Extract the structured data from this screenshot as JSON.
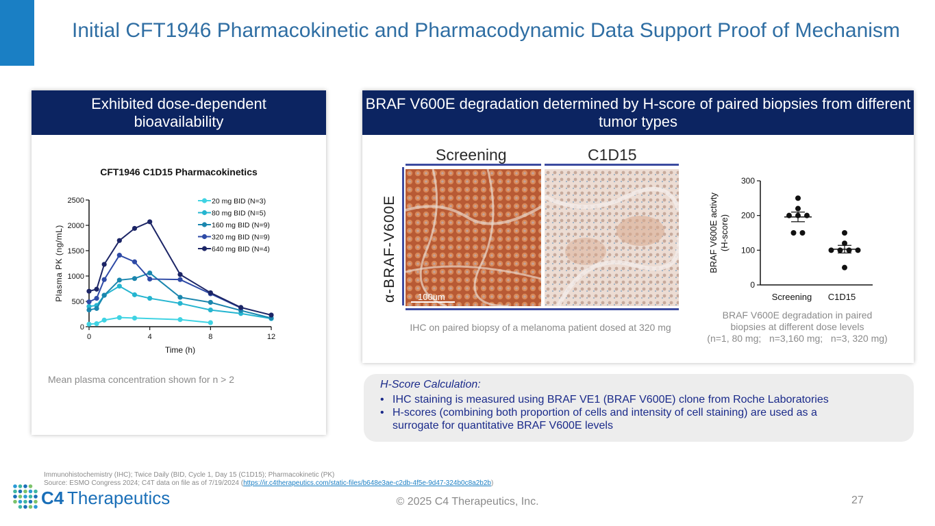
{
  "slide": {
    "title": "Initial CFT1946 Pharmacokinetic and Pharmacodynamic Data Support Proof of Mechanism",
    "accent_color": "#1a7fc4",
    "header_color": "#0c2461"
  },
  "left_panel": {
    "header": "Exhibited dose-dependent bioavailability",
    "caption": "Mean plasma concentration shown for n > 2"
  },
  "right_panel": {
    "header": "BRAF V600E degradation determined by H-score of paired biopsies from different tumor types",
    "ihc_col1": "Screening",
    "ihc_col2": "C1D15",
    "ihc_rowlabel": "α-BRAF-V600E",
    "scale_bar": "100um",
    "ihc_caption": "IHC on paired biopsy of a melanoma patient dosed at 320 mg",
    "dot_caption_1": "BRAF V600E degradation in paired",
    "dot_caption_2": "biopsies at different dose levels",
    "dot_caption_3": "(n=1, 80 mg;   n=3,160 mg;   n=3, 320 mg)"
  },
  "hscore": {
    "title": "H-Score Calculation:",
    "bullets": [
      "IHC staining is measured using BRAF VE1 (BRAF V600E) clone from Roche Laboratories",
      "H-scores (combining both proportion of cells and intensity of cell staining) are used as a surrogate for quantitative BRAF V600E levels"
    ]
  },
  "footer": {
    "note1": "Immunohistochemistry (IHC); Twice Daily (BID, Cycle 1, Day 15 (C1D15); Pharmacokinetic (PK)",
    "note2_prefix": "Source: ESMO Congress 2024; C4T data on file as of 7/19/2024 (",
    "note2_link": "https://ir.c4therapeutics.com/static-files/b648e3ae-c2db-4f5e-9d47-324b0c8a2b2b",
    "note2_suffix": ")",
    "logo_c4": "C4",
    "logo_text": "Therapeutics",
    "copyright": "© 2025 C4 Therapeutics, Inc.",
    "page": "27"
  },
  "chart_data": [
    {
      "type": "line",
      "title": "CFT1946 C1D15 Pharmacokinetics",
      "xlabel": "Time (h)",
      "ylabel": "Plasma PK (ng/mL)",
      "xlim": [
        0,
        12
      ],
      "ylim": [
        0,
        2500
      ],
      "xticks": [
        0,
        4,
        8,
        12
      ],
      "yticks": [
        0,
        500,
        1000,
        1500,
        2000,
        2500
      ],
      "legend": "top-right",
      "series": [
        {
          "name": "20 mg BID (N=3)",
          "color": "#3fd3e3",
          "x": [
            0,
            0.5,
            1,
            2,
            3,
            6,
            8
          ],
          "y": [
            50,
            60,
            130,
            180,
            170,
            140,
            80
          ]
        },
        {
          "name": "80 mg BID (N=5)",
          "color": "#25b5d0",
          "x": [
            0,
            0.5,
            1,
            2,
            3,
            4,
            6,
            8,
            10,
            12
          ],
          "y": [
            400,
            420,
            620,
            800,
            630,
            560,
            460,
            330,
            260,
            160
          ]
        },
        {
          "name": "160 mg BID (N=9)",
          "color": "#1a86ae",
          "x": [
            0,
            0.5,
            1,
            2,
            3,
            4,
            6,
            8,
            10,
            12
          ],
          "y": [
            330,
            360,
            620,
            920,
            950,
            1060,
            580,
            480,
            320,
            170
          ]
        },
        {
          "name": "320 mg BID (N=9)",
          "color": "#2e4aa6",
          "x": [
            0,
            0.5,
            1,
            2,
            3,
            4,
            6,
            8,
            10
          ],
          "y": [
            490,
            560,
            930,
            1410,
            1280,
            940,
            930,
            650,
            370
          ]
        },
        {
          "name": "640 mg BID (N=4)",
          "color": "#1c2566",
          "x": [
            0,
            0.5,
            1,
            2,
            3,
            4,
            6,
            8,
            10,
            12
          ],
          "y": [
            700,
            740,
            1230,
            1700,
            1940,
            2070,
            1030,
            670,
            380,
            230
          ]
        }
      ]
    },
    {
      "type": "scatter",
      "ylabel": "BRAF V600E activty (H-score)",
      "ylim": [
        0,
        300
      ],
      "yticks": [
        0,
        100,
        200,
        300
      ],
      "categories": [
        "Screening",
        "C1D15"
      ],
      "groups": [
        {
          "category": "Screening",
          "values": [
            250,
            220,
            200,
            200,
            200,
            150,
            150
          ],
          "mean": 196,
          "sem": 14
        },
        {
          "category": "C1D15",
          "values": [
            150,
            120,
            100,
            100,
            100,
            100,
            50
          ],
          "mean": 103,
          "sem": 11
        }
      ]
    }
  ]
}
